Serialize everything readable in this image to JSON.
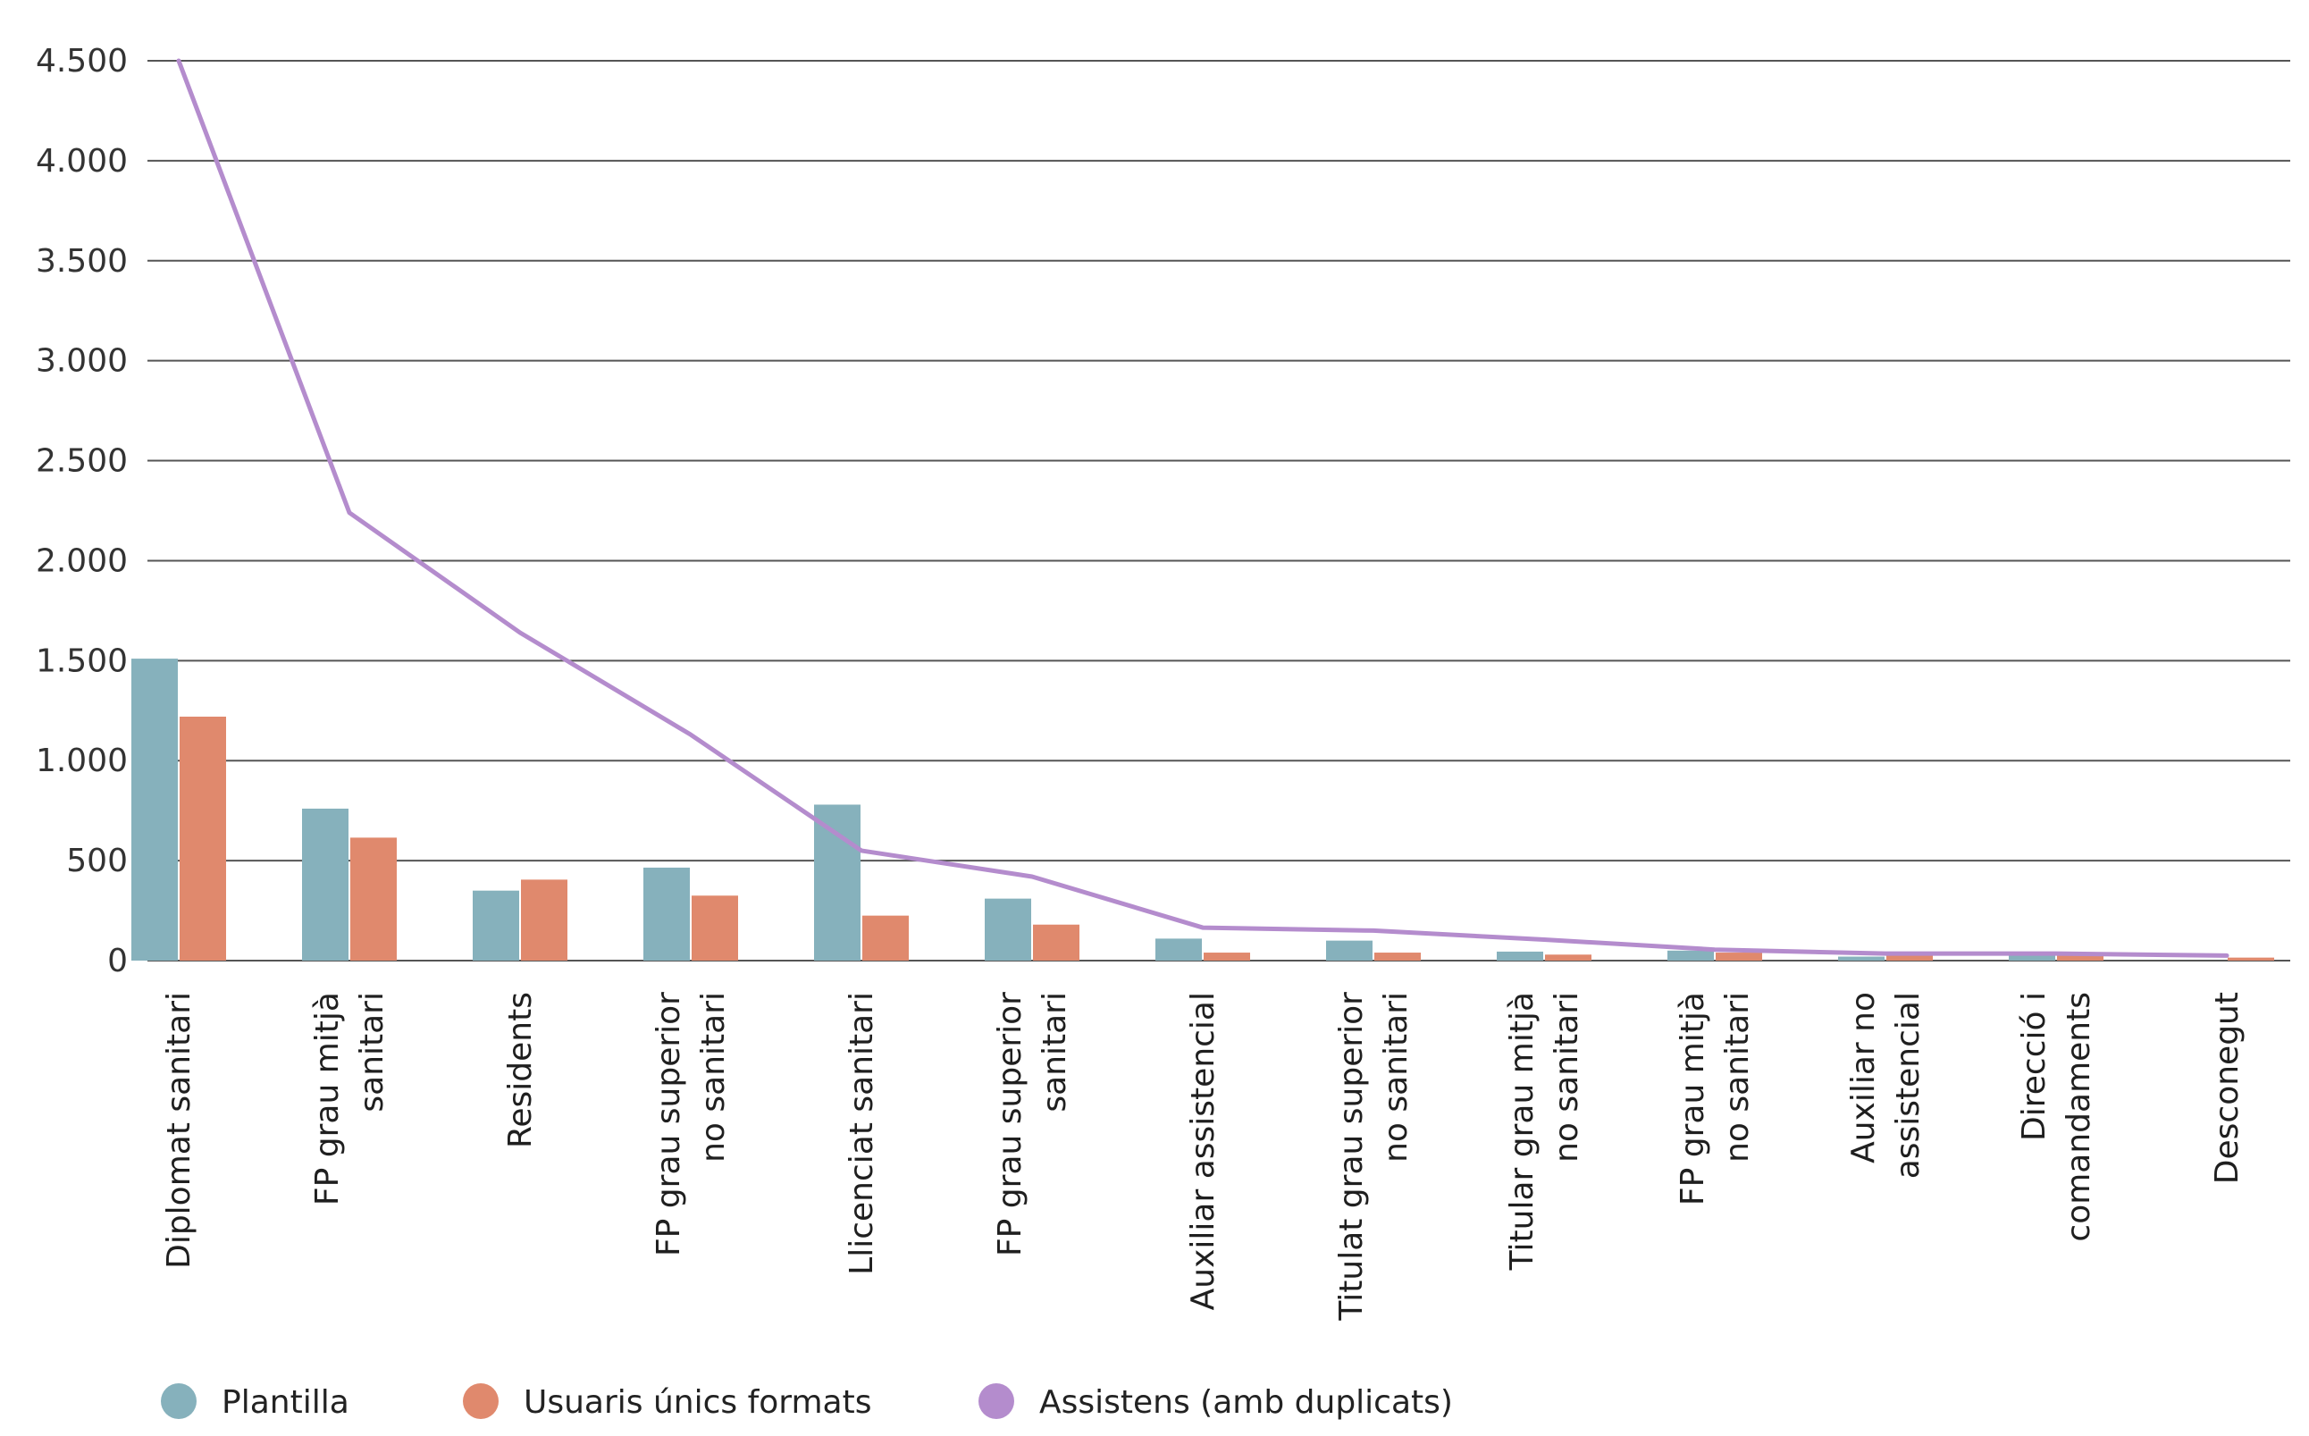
{
  "chart_data": {
    "type": "bar",
    "title": "",
    "xlabel": "",
    "ylabel": "",
    "ylim": [
      0,
      4500
    ],
    "yticks": [
      0,
      500,
      1000,
      1500,
      2000,
      2500,
      3000,
      3500,
      4000,
      4500
    ],
    "ytick_labels": [
      "0",
      "500",
      "1.000",
      "1.500",
      "2.000",
      "2.500",
      "3.000",
      "3.500",
      "4.000",
      "4.500"
    ],
    "grid": true,
    "legend_position": "bottom-left",
    "categories": [
      [
        "Diplomat sanitari"
      ],
      [
        "FP grau mitjà",
        "sanitari"
      ],
      [
        "Residents"
      ],
      [
        "FP grau superior",
        "no sanitari"
      ],
      [
        "Llicenciat sanitari"
      ],
      [
        "FP grau superior",
        "sanitari"
      ],
      [
        "Auxiliar assistencial"
      ],
      [
        "Titulat grau superior",
        "no sanitari"
      ],
      [
        "Titular grau mitjà",
        "no sanitari"
      ],
      [
        "FP grau mitjà",
        "no sanitari"
      ],
      [
        "Auxiliar no",
        "assistencial"
      ],
      [
        "Direcció i",
        "comandaments"
      ],
      [
        "Desconegut"
      ]
    ],
    "series": [
      {
        "name": "Plantilla",
        "kind": "bar",
        "color": "#86b1bc",
        "values": [
          1510,
          760,
          350,
          465,
          780,
          310,
          110,
          100,
          45,
          50,
          20,
          40,
          0
        ]
      },
      {
        "name": "Usuaris únics formats",
        "kind": "bar",
        "color": "#e0896d",
        "values": [
          1220,
          615,
          405,
          325,
          225,
          180,
          40,
          40,
          30,
          40,
          25,
          25,
          15
        ]
      },
      {
        "name": "Assistens (amb duplicats)",
        "kind": "line",
        "color": "#b48ccd",
        "values": [
          4500,
          2240,
          1640,
          1130,
          550,
          420,
          165,
          150,
          105,
          55,
          35,
          35,
          25
        ]
      }
    ]
  }
}
